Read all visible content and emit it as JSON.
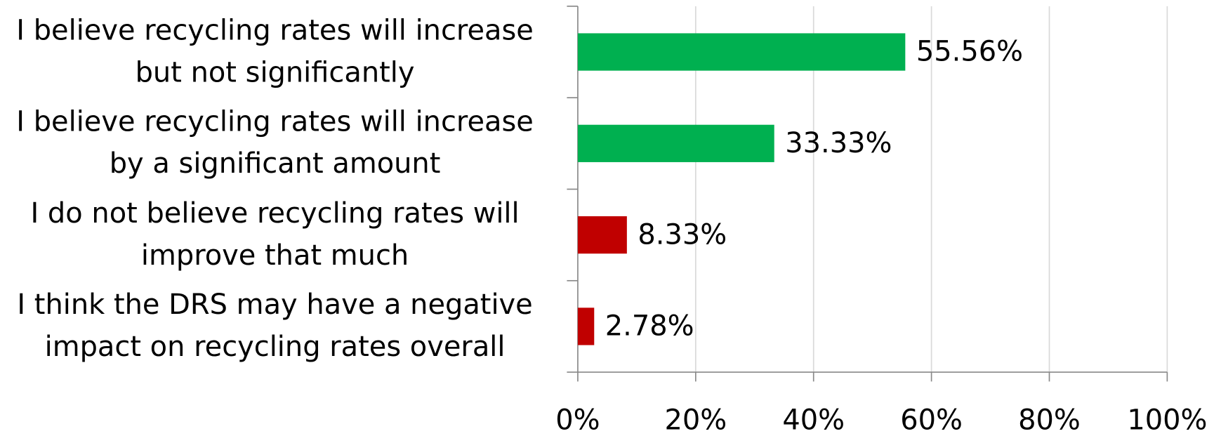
{
  "chart_data": {
    "type": "bar",
    "orientation": "horizontal",
    "categories": [
      "I believe recycling rates will increase but not significantly",
      "I believe recycling rates will increase by a significant amount",
      "I do not believe recycling rates will improve that much",
      "I think the DRS may have a negative impact on recycling rates overall"
    ],
    "values": [
      55.56,
      33.33,
      8.33,
      2.78
    ],
    "value_labels": [
      "55.56%",
      "33.33%",
      "8.33%",
      "2.78%"
    ],
    "colors": [
      "#00b050",
      "#00b050",
      "#c00000",
      "#c00000"
    ],
    "xlim": [
      0,
      100
    ],
    "xticks": [
      {
        "value": 0,
        "label": "0%"
      },
      {
        "value": 20,
        "label": "20%"
      },
      {
        "value": 40,
        "label": "40%"
      },
      {
        "value": 60,
        "label": "60%"
      },
      {
        "value": 80,
        "label": "80%"
      },
      {
        "value": 100,
        "label": "100%"
      }
    ],
    "grid": true
  }
}
